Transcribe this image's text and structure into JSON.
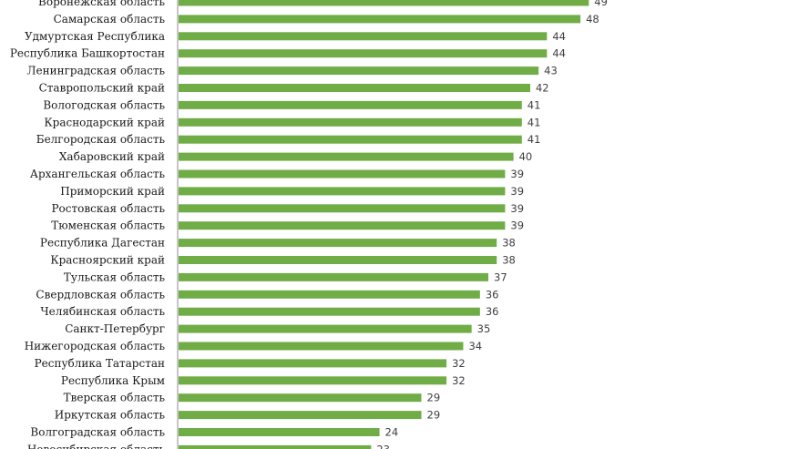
{
  "chart_data": {
    "type": "bar",
    "orientation": "horizontal",
    "title": "",
    "xlabel": "",
    "ylabel": "",
    "xlim": [
      0,
      57
    ],
    "grid": false,
    "legend": "none",
    "bar_color": "#70ad47",
    "categories": [
      "Воронежская область",
      "Самарская область",
      "Удмуртская Республика",
      "Республика Башкортостан",
      "Ленинградская область",
      "Ставропольский край",
      "Вологодская область",
      "Краснодарский край",
      "Белгородская область",
      "Хабаровский край",
      "Архангельская область",
      "Приморский край",
      "Ростовская область",
      "Тюменская область",
      "Республика Дагестан",
      "Красноярский край",
      "Тульская область",
      "Свердловская область",
      "Челябинская область",
      "Санкт-Петербург",
      "Нижегородская область",
      "Республика Татарстан",
      "Республика Крым",
      "Тверская область",
      "Иркутская область",
      "Волгоградская область",
      "Новосибирская область"
    ],
    "values": [
      49,
      48,
      44,
      44,
      43,
      42,
      41,
      41,
      41,
      40,
      39,
      39,
      39,
      39,
      38,
      38,
      37,
      36,
      36,
      35,
      34,
      32,
      32,
      29,
      29,
      24,
      23
    ]
  }
}
